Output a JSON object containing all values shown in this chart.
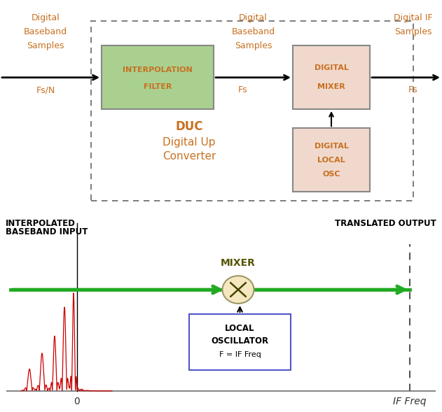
{
  "fig_width": 6.31,
  "fig_height": 5.89,
  "dpi": 100,
  "label_color": "#c87020",
  "text_color": "#333333",
  "top_panel": {
    "left_label": [
      "Digital",
      "Baseband",
      "Samples"
    ],
    "left_freq": "Fs/N",
    "interp_filter_label": [
      "INTERPOLATION",
      "FILTER"
    ],
    "interp_filter_color": "#aad090",
    "interp_filter_border": "#888888",
    "mid_label": [
      "Digital",
      "Baseband",
      "Samples"
    ],
    "mid_freq": "Fs",
    "digital_mixer_label": [
      "DIGITAL",
      "MIXER"
    ],
    "digital_mixer_color": "#f0d8cc",
    "digital_mixer_border": "#888888",
    "digital_lo_label": [
      "DIGITAL",
      "LOCAL",
      "OSC"
    ],
    "digital_lo_color": "#f0d8cc",
    "digital_lo_border": "#888888",
    "right_label": [
      "Digital IF",
      "Samples"
    ],
    "right_freq": "Fs",
    "duc_label": [
      "DUC",
      "Digital Up",
      "Converter"
    ],
    "duc_box_border": "#666666"
  },
  "bottom_panel": {
    "left_label_line1": "INTERPOLATED",
    "left_label_line2": "BASEBAND INPUT",
    "right_label": "TRANSLATED OUTPUT",
    "mixer_label": "MIXER",
    "lo_label_lines": [
      "LOCAL",
      "OSCILLATOR",
      "F = IF Freq"
    ],
    "lo_box_color": "#ffffff",
    "lo_box_border": "#5555cc",
    "signal_color": "#cc0000",
    "arrow_color": "#22aa22",
    "x_label": "IF Freq",
    "origin_label": "0"
  }
}
